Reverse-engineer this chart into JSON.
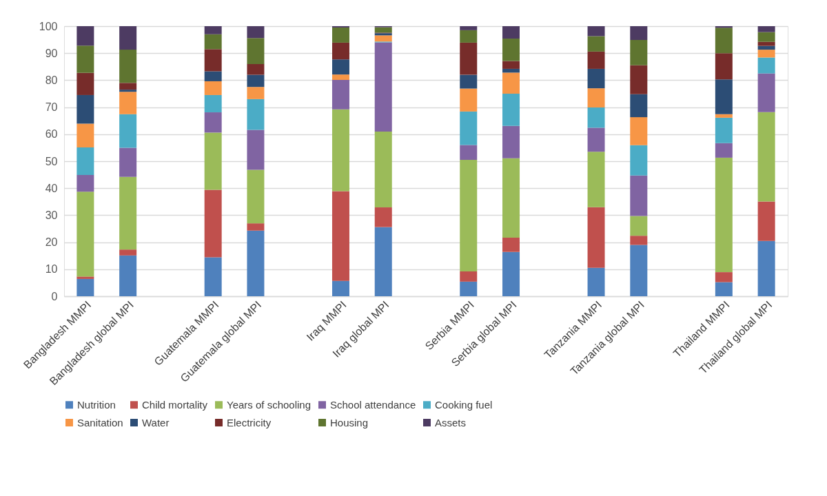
{
  "chart_data": {
    "type": "bar",
    "stacked": true,
    "categories": [
      "Bangladesh MMPI",
      "Bangladesh global MPI",
      null,
      "Guatemala MMPI",
      "Guatemala global MPI",
      null,
      "Iraq MMPI",
      "Iraq global MPI",
      null,
      "Serbia MMPI",
      "Serbia global MPI",
      null,
      "Tanzania MMPI",
      "Tanzania global MPI",
      null,
      "Thailand MMPI",
      "Thailand global MPI"
    ],
    "series": [
      {
        "name": "Nutrition",
        "color": "#4f81bd",
        "values": [
          6.4,
          15.1,
          null,
          14.4,
          24.3,
          null,
          5.7,
          25.6,
          null,
          5.4,
          16.4,
          null,
          10.5,
          19.0,
          null,
          5.2,
          20.5
        ]
      },
      {
        "name": "Child mortality",
        "color": "#c0504d",
        "values": [
          0.9,
          2.2,
          null,
          25.0,
          2.7,
          null,
          33.2,
          7.3,
          null,
          3.8,
          5.3,
          null,
          22.5,
          3.4,
          null,
          3.7,
          14.6
        ]
      },
      {
        "name": "Years of schooling",
        "color": "#9bbb59",
        "values": [
          31.4,
          26.9,
          null,
          21.2,
          19.8,
          null,
          30.3,
          28.1,
          null,
          41.3,
          29.4,
          null,
          20.5,
          7.3,
          null,
          42.4,
          33.1
        ]
      },
      {
        "name": "School attendance",
        "color": "#8064a2",
        "values": [
          6.2,
          10.8,
          null,
          7.5,
          14.8,
          null,
          10.9,
          33.0,
          null,
          5.5,
          12.0,
          null,
          8.9,
          15.0,
          null,
          5.4,
          14.3
        ]
      },
      {
        "name": "Cooking fuel",
        "color": "#4bacc6",
        "values": [
          10.2,
          12.4,
          null,
          6.4,
          11.4,
          null,
          0,
          0.3,
          null,
          12.4,
          11.9,
          null,
          7.5,
          11.2,
          null,
          9.4,
          5.9
        ]
      },
      {
        "name": "Sanitation",
        "color": "#f79646",
        "values": [
          8.8,
          8.3,
          null,
          5.1,
          4.5,
          null,
          2.0,
          2.3,
          null,
          8.5,
          7.8,
          null,
          7.1,
          10.4,
          null,
          1.3,
          2.9
        ]
      },
      {
        "name": "Water",
        "color": "#2c4d75",
        "values": [
          10.6,
          0.8,
          null,
          3.7,
          4.5,
          null,
          5.6,
          0.8,
          null,
          5.1,
          1.4,
          null,
          7.2,
          8.5,
          null,
          12.9,
          1.4
        ]
      },
      {
        "name": "Electricity",
        "color": "#772c2a",
        "values": [
          8.2,
          2.5,
          null,
          8.2,
          4.0,
          null,
          6.2,
          0.2,
          null,
          11.9,
          2.9,
          null,
          6.4,
          10.7,
          null,
          9.7,
          1.5
        ]
      },
      {
        "name": "Housing",
        "color": "#5f7530",
        "values": [
          10.1,
          12.3,
          null,
          5.5,
          9.6,
          null,
          5.6,
          2.0,
          null,
          4.6,
          8.3,
          null,
          5.7,
          9.4,
          null,
          9.4,
          3.6
        ]
      },
      {
        "name": "Assets",
        "color": "#4d3b62",
        "values": [
          7.2,
          8.7,
          null,
          3.0,
          4.4,
          null,
          0.5,
          0.4,
          null,
          1.5,
          4.6,
          null,
          3.7,
          5.1,
          null,
          0.6,
          2.2
        ]
      }
    ],
    "ylim": [
      0,
      100
    ],
    "yticks": [
      0,
      10,
      20,
      30,
      40,
      50,
      60,
      70,
      80,
      90,
      100
    ],
    "grid": "y",
    "legend": "bottom"
  }
}
